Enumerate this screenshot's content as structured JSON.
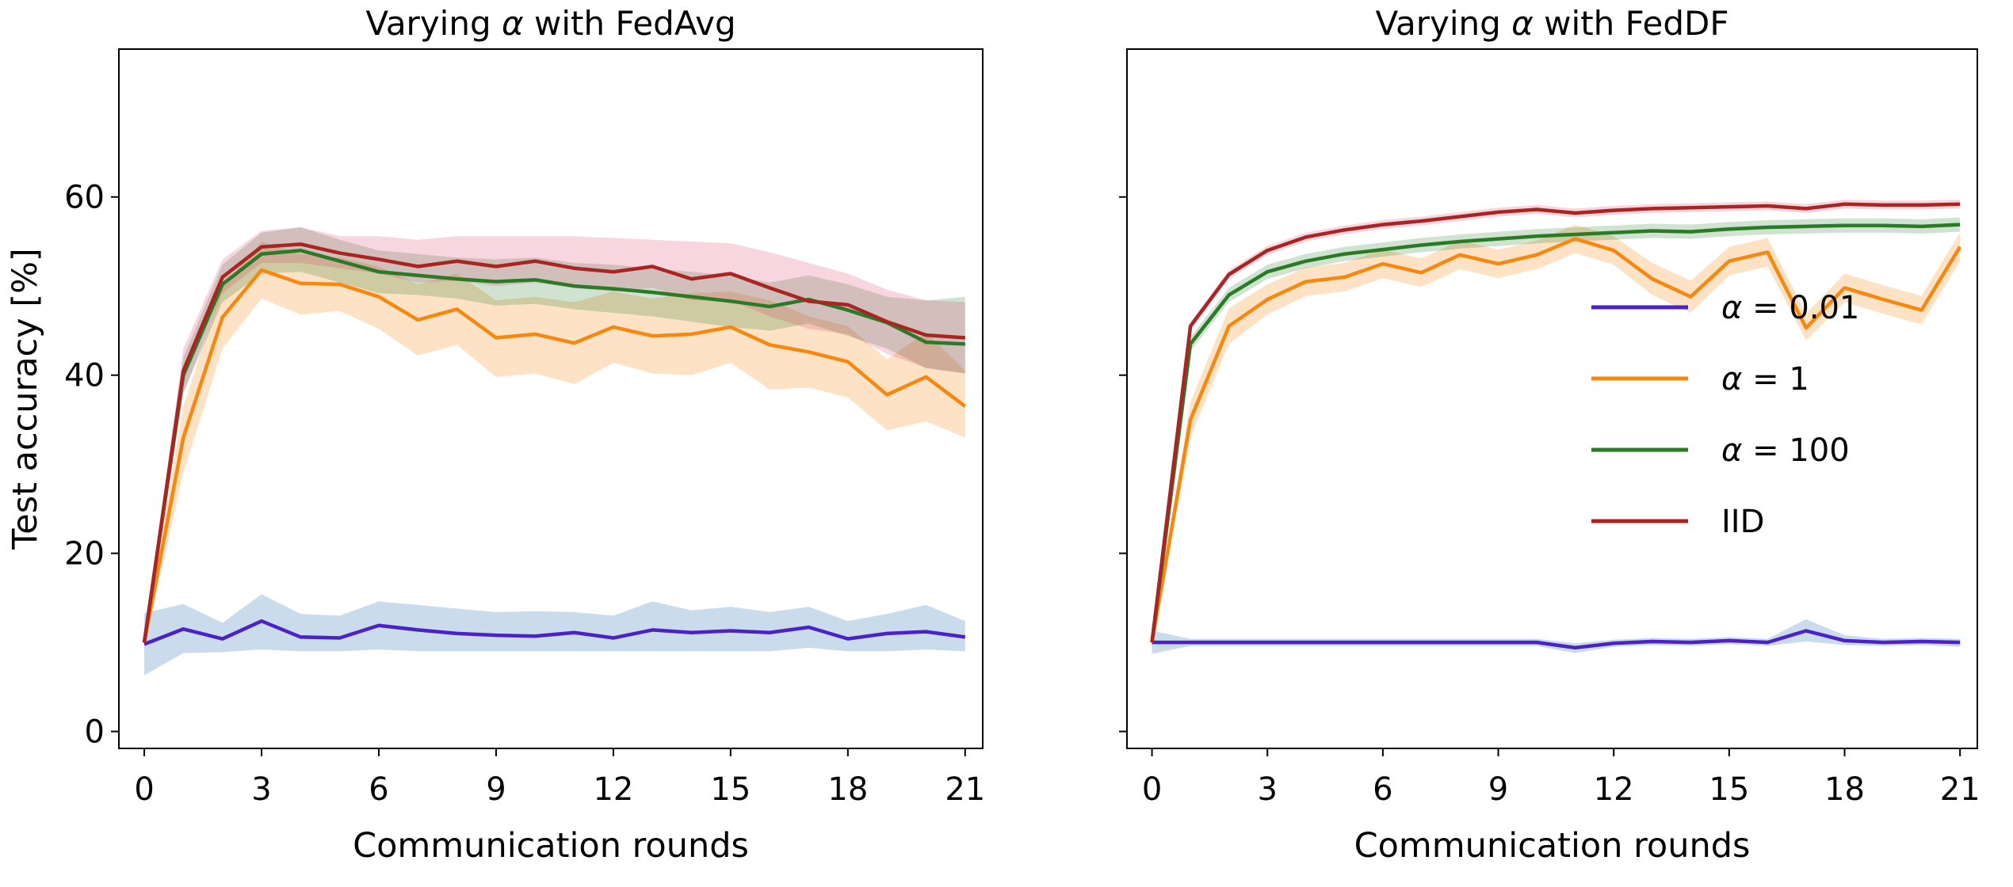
{
  "figure": {
    "background": "#ffffff",
    "text_color": "#000000",
    "xlabel": "Communication rounds",
    "ylabel": "Test accuracy [%]"
  },
  "chart_data": [
    {
      "type": "line",
      "key": "fedavg",
      "title": "Varying α with FedAvg",
      "xlabel": "Communication rounds",
      "ylabel": "Test accuracy [%]",
      "grid": false,
      "xlim": [
        -0.65,
        21.45
      ],
      "ylim": [
        -1.9,
        76.6
      ],
      "xticks": [
        0,
        3,
        6,
        9,
        12,
        15,
        18,
        21
      ],
      "yticks": [
        0,
        20,
        40,
        60
      ],
      "show_ytick_labels": true,
      "legend_visible": false,
      "x": [
        0,
        1,
        2,
        3,
        4,
        5,
        6,
        7,
        8,
        9,
        10,
        11,
        12,
        13,
        14,
        15,
        16,
        17,
        18,
        19,
        20,
        21
      ],
      "series": [
        {
          "key": "alpha-0-01",
          "name": "α = 0.01",
          "color": "#4c22c8",
          "band_color": "rgba(49,118,177,0.26)",
          "values": [
            9.8,
            11.5,
            10.4,
            12.4,
            10.6,
            10.5,
            11.9,
            11.4,
            11.0,
            10.8,
            10.7,
            11.1,
            10.5,
            11.4,
            11.1,
            11.3,
            11.1,
            11.7,
            10.4,
            11.0,
            11.2,
            10.6
          ],
          "band_lower": [
            6.3,
            8.8,
            8.9,
            9.2,
            9.0,
            9.0,
            9.2,
            9.0,
            9.0,
            9.0,
            9.0,
            9.0,
            9.0,
            9.0,
            9.0,
            9.0,
            9.0,
            9.4,
            9.0,
            9.0,
            9.2,
            9.0
          ],
          "band_upper": [
            13.3,
            14.3,
            12.2,
            15.4,
            13.2,
            13.0,
            14.6,
            14.2,
            13.8,
            13.4,
            13.5,
            13.4,
            13.0,
            14.6,
            13.6,
            14.0,
            13.4,
            14.0,
            12.4,
            13.2,
            14.2,
            12.4
          ]
        },
        {
          "key": "alpha-1",
          "name": "α = 1",
          "color": "#f6870f",
          "band_color": "rgba(246,135,15,0.24)",
          "values": [
            10,
            33,
            46.5,
            51.8,
            50.3,
            50.2,
            48.8,
            46.2,
            47.4,
            44.2,
            44.6,
            43.6,
            45.4,
            44.4,
            44.6,
            45.4,
            43.4,
            42.6,
            41.5,
            37.8,
            39.8,
            36.5
          ],
          "band_lower": [
            9.5,
            29,
            43,
            48.6,
            46.8,
            47.2,
            45.2,
            42.2,
            43.4,
            39.8,
            40.2,
            39.0,
            41.4,
            40.2,
            40.0,
            41.4,
            38.4,
            38.6,
            37.5,
            33.8,
            34.8,
            33.0
          ],
          "band_upper": [
            10.5,
            36.5,
            50,
            55,
            53.6,
            53.2,
            52.2,
            50.2,
            51.4,
            48.4,
            48.8,
            48.2,
            49.4,
            48.6,
            49.2,
            49.4,
            48.4,
            46.6,
            45.5,
            41.8,
            44.8,
            40.5
          ]
        },
        {
          "key": "alpha-100",
          "name": "α = 100",
          "color": "#2b7a28",
          "band_color": "rgba(43,122,40,0.22)",
          "values": [
            10,
            40,
            50.2,
            53.6,
            54.0,
            52.8,
            51.6,
            51.2,
            50.8,
            50.5,
            50.7,
            50.0,
            49.7,
            49.3,
            48.8,
            48.3,
            47.7,
            48.5,
            47.3,
            45.9,
            43.7,
            43.5
          ],
          "band_lower": [
            9.4,
            38,
            48.2,
            51.4,
            51.6,
            50.4,
            49.2,
            49.0,
            48.6,
            47.8,
            48.0,
            47.4,
            47.0,
            46.6,
            46.0,
            45.4,
            45.0,
            45.8,
            44.4,
            43.0,
            40.8,
            40.2
          ],
          "band_upper": [
            10.6,
            42,
            52.4,
            56.0,
            56.6,
            55.2,
            54.0,
            53.6,
            53.2,
            53.0,
            53.2,
            52.6,
            52.4,
            52.0,
            51.6,
            51.2,
            50.4,
            51.2,
            50.2,
            48.8,
            48.4,
            48.8
          ]
        },
        {
          "key": "iid",
          "name": "IID",
          "color": "#a82523",
          "band_color": "rgba(222,49,99,0.2)",
          "values": [
            10,
            40.5,
            51.0,
            54.4,
            54.7,
            53.7,
            53.0,
            52.2,
            52.8,
            52.2,
            52.8,
            52.0,
            51.6,
            52.2,
            50.8,
            51.4,
            49.8,
            48.3,
            47.9,
            46.0,
            44.5,
            44.2
          ],
          "band_lower": [
            9.4,
            38,
            49.2,
            52.6,
            52.6,
            52.0,
            51.4,
            50.4,
            50.6,
            50.0,
            50.4,
            49.8,
            49.4,
            49.8,
            48.4,
            48.4,
            46.6,
            45.2,
            44.6,
            42.4,
            40.8,
            40.2
          ],
          "band_upper": [
            10.6,
            43,
            53.0,
            56.2,
            56.6,
            55.6,
            55.6,
            55.2,
            55.6,
            55.6,
            55.6,
            55.6,
            55.4,
            55.2,
            55.0,
            54.8,
            53.8,
            52.6,
            51.4,
            49.6,
            48.4,
            48.2
          ]
        }
      ]
    },
    {
      "type": "line",
      "key": "feddf",
      "title": "Varying α with FedDF",
      "xlabel": "Communication rounds",
      "ylabel": "",
      "grid": false,
      "xlim": [
        -0.65,
        21.45
      ],
      "ylim": [
        -1.9,
        76.6
      ],
      "xticks": [
        0,
        3,
        6,
        9,
        12,
        15,
        18,
        21
      ],
      "yticks": [
        0,
        20,
        40,
        60
      ],
      "show_ytick_labels": false,
      "legend_visible": true,
      "legend_location": "center right",
      "x": [
        0,
        1,
        2,
        3,
        4,
        5,
        6,
        7,
        8,
        9,
        10,
        11,
        12,
        13,
        14,
        15,
        16,
        17,
        18,
        19,
        20,
        21
      ],
      "series": [
        {
          "key": "alpha-0-01",
          "name": "α = 0.01",
          "color": "#4c22c8",
          "band_color": "rgba(49,118,177,0.26)",
          "values": [
            10,
            10,
            10,
            10,
            10,
            10,
            10,
            10,
            10,
            10,
            10,
            9.4,
            9.9,
            10.1,
            10,
            10.2,
            10,
            11.3,
            10.2,
            10,
            10.1,
            10
          ],
          "band_lower": [
            8.7,
            9.6,
            9.6,
            9.6,
            9.6,
            9.6,
            9.6,
            9.6,
            9.6,
            9.6,
            9.6,
            8.8,
            9.5,
            9.7,
            9.6,
            9.8,
            9.6,
            10.1,
            9.7,
            9.6,
            9.7,
            9.5
          ],
          "band_upper": [
            11.3,
            10.4,
            10.4,
            10.4,
            10.4,
            10.4,
            10.4,
            10.4,
            10.4,
            10.4,
            10.4,
            9.9,
            10.3,
            10.5,
            10.4,
            10.6,
            10.4,
            12.6,
            10.8,
            10.4,
            10.5,
            10.4
          ]
        },
        {
          "key": "alpha-1",
          "name": "α = 1",
          "color": "#f6870f",
          "band_color": "rgba(246,135,15,0.24)",
          "values": [
            10,
            35,
            45.5,
            48.5,
            50.5,
            51.0,
            52.5,
            51.5,
            53.5,
            52.5,
            53.5,
            55.3,
            54.0,
            50.8,
            48.8,
            52.8,
            53.8,
            45.3,
            49.8,
            48.5,
            47.3,
            54.4
          ],
          "band_lower": [
            9.6,
            33,
            43.5,
            46.8,
            48.9,
            49.4,
            50.9,
            49.9,
            51.9,
            50.9,
            51.9,
            53.7,
            52.4,
            49.0,
            47.0,
            51.2,
            52.2,
            43.9,
            48.2,
            46.9,
            45.7,
            52.8
          ],
          "band_upper": [
            10.4,
            37,
            47.5,
            50.2,
            52.1,
            52.6,
            54.1,
            53.1,
            55.1,
            54.1,
            55.1,
            56.9,
            55.6,
            52.6,
            50.6,
            54.4,
            55.4,
            46.9,
            51.4,
            50.1,
            48.9,
            56.0
          ]
        },
        {
          "key": "alpha-100",
          "name": "α = 100",
          "color": "#2b7a28",
          "band_color": "rgba(43,122,40,0.22)",
          "values": [
            10,
            43.5,
            49.0,
            51.6,
            52.8,
            53.6,
            54.1,
            54.6,
            55.0,
            55.3,
            55.6,
            55.8,
            56.0,
            56.2,
            56.1,
            56.4,
            56.6,
            56.7,
            56.8,
            56.8,
            56.7,
            56.9
          ],
          "band_lower": [
            9.2,
            42.7,
            48.2,
            50.8,
            52.0,
            52.8,
            53.3,
            53.8,
            54.2,
            54.5,
            54.8,
            55.0,
            55.2,
            55.4,
            55.3,
            55.6,
            55.8,
            55.9,
            56.0,
            56.0,
            55.9,
            56.1
          ],
          "band_upper": [
            10.8,
            44.3,
            49.8,
            52.4,
            53.6,
            54.4,
            54.9,
            55.4,
            55.8,
            56.1,
            56.4,
            56.6,
            56.8,
            57.0,
            56.9,
            57.2,
            57.4,
            57.5,
            57.6,
            57.6,
            57.5,
            57.7
          ]
        },
        {
          "key": "iid",
          "name": "IID",
          "color": "#a82523",
          "band_color": "rgba(222,49,99,0.2)",
          "values": [
            10,
            45.5,
            51.3,
            54.0,
            55.5,
            56.3,
            56.9,
            57.3,
            57.8,
            58.3,
            58.6,
            58.2,
            58.5,
            58.7,
            58.8,
            58.9,
            59.0,
            58.7,
            59.2,
            59.1,
            59.1,
            59.2
          ],
          "band_lower": [
            9.5,
            45.0,
            50.8,
            53.5,
            55.0,
            55.8,
            56.4,
            56.8,
            57.3,
            57.8,
            58.1,
            57.7,
            58.0,
            58.2,
            58.3,
            58.4,
            58.5,
            58.2,
            58.7,
            58.6,
            58.6,
            58.7
          ],
          "band_upper": [
            10.5,
            46.0,
            51.8,
            54.5,
            56.0,
            56.8,
            57.4,
            57.8,
            58.3,
            58.8,
            59.1,
            58.7,
            59.0,
            59.2,
            59.3,
            59.4,
            59.5,
            59.2,
            59.7,
            59.6,
            59.6,
            59.7
          ]
        }
      ]
    }
  ]
}
